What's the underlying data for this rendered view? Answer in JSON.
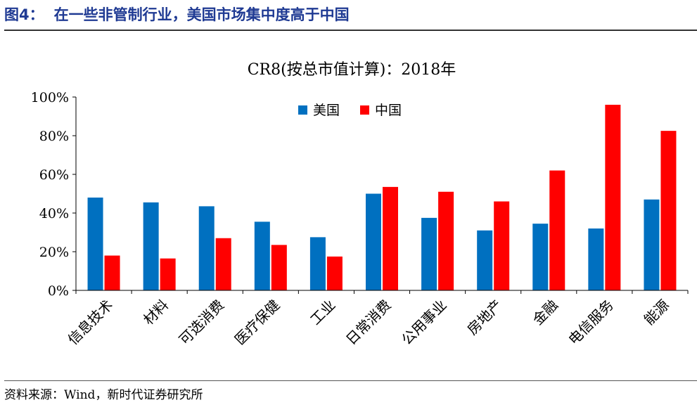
{
  "figure": {
    "label": "图4：",
    "title": "在一些非管制行业，美国市场集中度高于中国",
    "source": "资料来源：Wind，新时代证券研究所"
  },
  "chart_data": {
    "type": "bar",
    "title": "CR8(按总市值计算)：2018年",
    "categories": [
      "信息技术",
      "材料",
      "可选消费",
      "医疗保健",
      "工业",
      "日常消费",
      "公用事业",
      "房地产",
      "金融",
      "电信服务",
      "能源"
    ],
    "series": [
      {
        "name": "美国",
        "color": "#0070c0",
        "values": [
          48,
          45.5,
          43.5,
          35.5,
          27.5,
          50,
          37.5,
          31,
          34.5,
          32,
          47
        ]
      },
      {
        "name": "中国",
        "color": "#ff0000",
        "values": [
          18,
          16.5,
          27,
          23.5,
          17.5,
          53.5,
          51,
          46,
          62,
          96,
          82.5
        ]
      }
    ],
    "yticks": [
      "0%",
      "20%",
      "40%",
      "60%",
      "80%",
      "100%"
    ],
    "ylim": [
      0,
      100
    ],
    "legend_position": "top-center",
    "grid": false
  }
}
